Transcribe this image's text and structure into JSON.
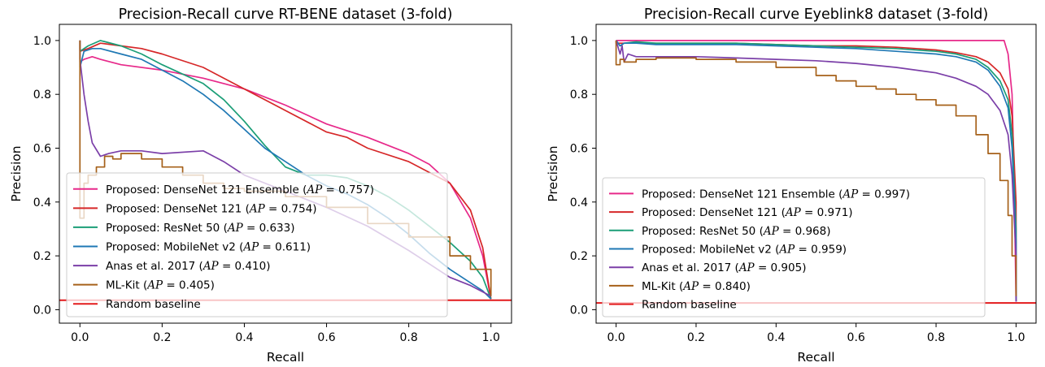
{
  "colors": {
    "ensemble": "#e7298a",
    "densenet": "#d62728",
    "resnet": "#1b9e77",
    "mobilenet": "#1f78b4",
    "anas": "#7b3fa8",
    "mlkit": "#a6611a",
    "random": "#e31a1c"
  },
  "chart_data": [
    {
      "type": "line",
      "title": "Precision-Recall curve RT-BENE dataset (3-fold)",
      "xlabel": "Recall",
      "ylabel": "Precision",
      "xlim": [
        -0.05,
        1.05
      ],
      "ylim": [
        -0.05,
        1.06
      ],
      "xticks": [
        0.0,
        0.2,
        0.4,
        0.6,
        0.8,
        1.0
      ],
      "xtick_labels": [
        "0.0",
        "0.2",
        "0.4",
        "0.6",
        "0.8",
        "1.0"
      ],
      "yticks": [
        0.0,
        0.2,
        0.4,
        0.6,
        0.8,
        1.0
      ],
      "ytick_labels": [
        "0.0",
        "0.2",
        "0.4",
        "0.6",
        "0.8",
        "1.0"
      ],
      "grid": false,
      "legend_position": "lower-left",
      "series": [
        {
          "key": "ensemble",
          "label_prefix": "Proposed: DenseNet 121 Ensemble (",
          "label_var": "AP",
          "label_suffix": " = 0.757)",
          "x": [
            0.0,
            0.0,
            0.01,
            0.03,
            0.05,
            0.1,
            0.2,
            0.3,
            0.4,
            0.5,
            0.6,
            0.7,
            0.8,
            0.85,
            0.9,
            0.95,
            0.98,
            1.0
          ],
          "y": [
            1.0,
            0.92,
            0.93,
            0.94,
            0.93,
            0.91,
            0.89,
            0.86,
            0.82,
            0.76,
            0.69,
            0.64,
            0.58,
            0.54,
            0.47,
            0.34,
            0.2,
            0.04
          ]
        },
        {
          "key": "densenet",
          "label_prefix": "Proposed: DenseNet 121 (",
          "label_var": "AP",
          "label_suffix": " = 0.754)",
          "x": [
            0.0,
            0.0,
            0.02,
            0.05,
            0.1,
            0.15,
            0.2,
            0.3,
            0.4,
            0.5,
            0.6,
            0.65,
            0.7,
            0.8,
            0.9,
            0.95,
            0.98,
            1.0
          ],
          "y": [
            1.0,
            0.96,
            0.97,
            0.99,
            0.98,
            0.97,
            0.95,
            0.9,
            0.82,
            0.74,
            0.66,
            0.64,
            0.6,
            0.55,
            0.47,
            0.37,
            0.23,
            0.04
          ]
        },
        {
          "key": "resnet",
          "label_prefix": "Proposed: ResNet 50 (",
          "label_var": "AP",
          "label_suffix": " = 0.633)",
          "x": [
            0.0,
            0.0,
            0.02,
            0.05,
            0.1,
            0.15,
            0.2,
            0.3,
            0.35,
            0.4,
            0.45,
            0.5,
            0.55,
            0.6,
            0.65,
            0.7,
            0.75,
            0.8,
            0.85,
            0.9,
            0.95,
            0.98,
            1.0
          ],
          "y": [
            1.0,
            0.96,
            0.98,
            1.0,
            0.98,
            0.95,
            0.91,
            0.84,
            0.78,
            0.7,
            0.61,
            0.53,
            0.5,
            0.5,
            0.49,
            0.46,
            0.42,
            0.37,
            0.31,
            0.25,
            0.18,
            0.12,
            0.04
          ]
        },
        {
          "key": "mobilenet",
          "label_prefix": "Proposed: MobileNet v2 (",
          "label_var": "AP",
          "label_suffix": " = 0.611)",
          "x": [
            0.0,
            0.0,
            0.01,
            0.03,
            0.05,
            0.1,
            0.15,
            0.2,
            0.25,
            0.3,
            0.35,
            0.4,
            0.45,
            0.5,
            0.55,
            0.6,
            0.65,
            0.7,
            0.75,
            0.8,
            0.85,
            0.9,
            0.95,
            0.98,
            1.0
          ],
          "y": [
            1.0,
            0.9,
            0.96,
            0.97,
            0.97,
            0.95,
            0.93,
            0.89,
            0.85,
            0.8,
            0.74,
            0.67,
            0.6,
            0.55,
            0.5,
            0.46,
            0.43,
            0.39,
            0.34,
            0.28,
            0.21,
            0.15,
            0.1,
            0.07,
            0.04
          ]
        },
        {
          "key": "anas",
          "label_prefix": "Anas et al. 2017 (",
          "label_var": "AP",
          "label_suffix": " = 0.410)",
          "x": [
            0.0,
            0.0,
            0.01,
            0.02,
            0.03,
            0.05,
            0.07,
            0.1,
            0.15,
            0.2,
            0.3,
            0.35,
            0.4,
            0.5,
            0.6,
            0.7,
            0.8,
            0.9,
            0.95,
            1.0
          ],
          "y": [
            1.0,
            0.93,
            0.8,
            0.7,
            0.62,
            0.57,
            0.58,
            0.59,
            0.59,
            0.58,
            0.59,
            0.55,
            0.5,
            0.44,
            0.38,
            0.31,
            0.22,
            0.12,
            0.09,
            0.05
          ]
        },
        {
          "key": "mlkit",
          "label_prefix": "ML-Kit (",
          "label_var": "AP",
          "label_suffix": " = 0.405)",
          "step": true,
          "x": [
            0.0,
            0.0,
            0.01,
            0.02,
            0.04,
            0.06,
            0.08,
            0.1,
            0.15,
            0.2,
            0.25,
            0.3,
            0.35,
            0.4,
            0.5,
            0.6,
            0.7,
            0.8,
            0.9,
            0.95,
            1.0
          ],
          "y": [
            1.0,
            0.34,
            0.47,
            0.5,
            0.53,
            0.57,
            0.56,
            0.58,
            0.56,
            0.53,
            0.5,
            0.47,
            0.45,
            0.44,
            0.42,
            0.38,
            0.32,
            0.27,
            0.2,
            0.15,
            0.05
          ]
        },
        {
          "key": "random",
          "label_prefix": "Random baseline",
          "label_var": "",
          "label_suffix": "",
          "x": [
            -0.05,
            1.05
          ],
          "y": [
            0.035,
            0.035
          ]
        }
      ]
    },
    {
      "type": "line",
      "title": "Precision-Recall curve Eyeblink8 dataset (3-fold)",
      "xlabel": "Recall",
      "ylabel": "Precision",
      "xlim": [
        -0.05,
        1.05
      ],
      "ylim": [
        -0.05,
        1.06
      ],
      "xticks": [
        0.0,
        0.2,
        0.4,
        0.6,
        0.8,
        1.0
      ],
      "xtick_labels": [
        "0.0",
        "0.2",
        "0.4",
        "0.6",
        "0.8",
        "1.0"
      ],
      "yticks": [
        0.0,
        0.2,
        0.4,
        0.6,
        0.8,
        1.0
      ],
      "ytick_labels": [
        "0.0",
        "0.2",
        "0.4",
        "0.6",
        "0.8",
        "1.0"
      ],
      "grid": false,
      "legend_position": "lower-left",
      "series": [
        {
          "key": "ensemble",
          "label_prefix": "Proposed: DenseNet 121 Ensemble (",
          "label_var": "AP",
          "label_suffix": " = 0.997)",
          "x": [
            0.0,
            0.5,
            0.9,
            0.96,
            0.97,
            0.98,
            0.99,
            0.995,
            1.0
          ],
          "y": [
            1.0,
            1.0,
            1.0,
            1.0,
            1.0,
            0.95,
            0.8,
            0.5,
            0.03
          ]
        },
        {
          "key": "densenet",
          "label_prefix": "Proposed: DenseNet 121 (",
          "label_var": "AP",
          "label_suffix": " = 0.971)",
          "x": [
            0.0,
            0.0,
            0.05,
            0.1,
            0.2,
            0.3,
            0.4,
            0.5,
            0.6,
            0.7,
            0.8,
            0.85,
            0.9,
            0.93,
            0.96,
            0.98,
            0.99,
            1.0,
            1.0
          ],
          "y": [
            1.0,
            0.99,
            0.99,
            0.99,
            0.99,
            0.99,
            0.985,
            0.98,
            0.98,
            0.975,
            0.965,
            0.955,
            0.94,
            0.92,
            0.88,
            0.82,
            0.72,
            0.4,
            0.03
          ]
        },
        {
          "key": "resnet",
          "label_prefix": "Proposed: ResNet 50 (",
          "label_var": "AP",
          "label_suffix": " = 0.968)",
          "x": [
            0.0,
            0.01,
            0.02,
            0.05,
            0.1,
            0.2,
            0.3,
            0.4,
            0.5,
            0.6,
            0.7,
            0.8,
            0.85,
            0.9,
            0.93,
            0.96,
            0.98,
            0.99,
            1.0,
            1.0
          ],
          "y": [
            1.0,
            0.98,
            0.99,
            0.995,
            0.99,
            0.99,
            0.99,
            0.985,
            0.98,
            0.975,
            0.97,
            0.96,
            0.95,
            0.93,
            0.9,
            0.85,
            0.78,
            0.65,
            0.3,
            0.03
          ]
        },
        {
          "key": "mobilenet",
          "label_prefix": "Proposed: MobileNet v2 (",
          "label_var": "AP",
          "label_suffix": " = 0.959)",
          "x": [
            0.0,
            0.01,
            0.02,
            0.05,
            0.1,
            0.2,
            0.3,
            0.4,
            0.5,
            0.6,
            0.7,
            0.8,
            0.85,
            0.9,
            0.93,
            0.96,
            0.98,
            0.99,
            1.0,
            1.0
          ],
          "y": [
            1.0,
            0.98,
            0.99,
            0.99,
            0.985,
            0.985,
            0.985,
            0.98,
            0.975,
            0.97,
            0.96,
            0.95,
            0.94,
            0.92,
            0.89,
            0.83,
            0.75,
            0.6,
            0.25,
            0.03
          ]
        },
        {
          "key": "anas",
          "label_prefix": "Anas et al. 2017 (",
          "label_var": "AP",
          "label_suffix": " = 0.905)",
          "x": [
            0.0,
            0.01,
            0.015,
            0.02,
            0.03,
            0.05,
            0.1,
            0.2,
            0.3,
            0.4,
            0.5,
            0.6,
            0.7,
            0.8,
            0.85,
            0.9,
            0.93,
            0.96,
            0.98,
            0.99,
            1.0,
            1.0
          ],
          "y": [
            1.0,
            0.95,
            0.98,
            0.92,
            0.95,
            0.94,
            0.94,
            0.94,
            0.935,
            0.93,
            0.925,
            0.915,
            0.9,
            0.88,
            0.86,
            0.83,
            0.8,
            0.74,
            0.65,
            0.5,
            0.2,
            0.03
          ]
        },
        {
          "key": "mlkit",
          "label_prefix": "ML-Kit (",
          "label_var": "AP",
          "label_suffix": " = 0.840)",
          "step": true,
          "x": [
            0.0,
            0.0,
            0.01,
            0.02,
            0.05,
            0.1,
            0.2,
            0.3,
            0.4,
            0.5,
            0.55,
            0.6,
            0.65,
            0.7,
            0.75,
            0.8,
            0.85,
            0.9,
            0.93,
            0.96,
            0.98,
            0.99,
            1.0
          ],
          "y": [
            1.0,
            0.91,
            0.93,
            0.92,
            0.93,
            0.935,
            0.93,
            0.92,
            0.9,
            0.87,
            0.85,
            0.83,
            0.82,
            0.8,
            0.78,
            0.76,
            0.72,
            0.65,
            0.58,
            0.48,
            0.35,
            0.2,
            0.05
          ]
        },
        {
          "key": "random",
          "label_prefix": "Random baseline",
          "label_var": "",
          "label_suffix": "",
          "x": [
            -0.05,
            1.05
          ],
          "y": [
            0.025,
            0.025
          ]
        }
      ]
    }
  ]
}
